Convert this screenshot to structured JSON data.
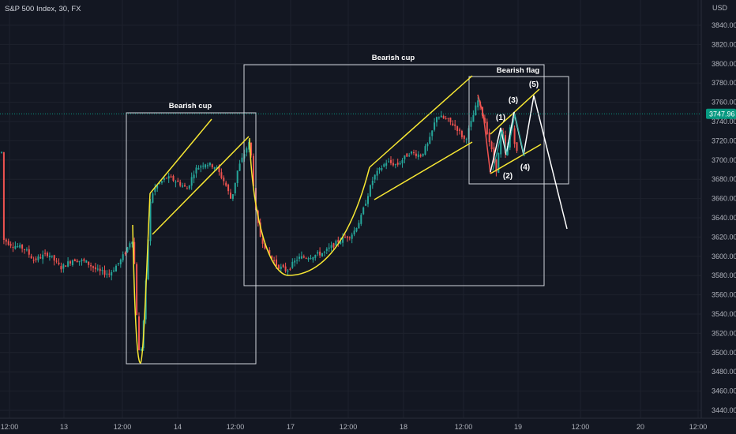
{
  "title": "S&P 500 Index, 30, FX",
  "colors": {
    "background": "#131722",
    "up": "#26a69a",
    "down": "#ef5350",
    "annotation": "#f7e733",
    "box": "#d1d4dc",
    "price_tag": "#089981",
    "grid": "#1e222d"
  },
  "chart_data": {
    "type": "candlestick",
    "currency_label": "USD",
    "y_ticks": [
      3440,
      3460,
      3480,
      3500,
      3520,
      3540,
      3560,
      3580,
      3600,
      3620,
      3640,
      3660,
      3680,
      3700,
      3720,
      3740,
      3760,
      3780,
      3800,
      3820,
      3840
    ],
    "ylim": [
      3431,
      3860
    ],
    "x_ticks": [
      "12:00",
      "13",
      "12:00",
      "14",
      "12:00",
      "17",
      "12:00",
      "18",
      "12:00",
      "19",
      "12:00",
      "20",
      "12:00"
    ],
    "last_price": "3747.96",
    "annotations": [
      {
        "text": "Bearish cup"
      },
      {
        "text": "Bearish cup"
      },
      {
        "text": "Bearish flag"
      }
    ],
    "wave_labels": [
      "(1)",
      "(2)",
      "(3)",
      "(4)",
      "(5)"
    ]
  }
}
